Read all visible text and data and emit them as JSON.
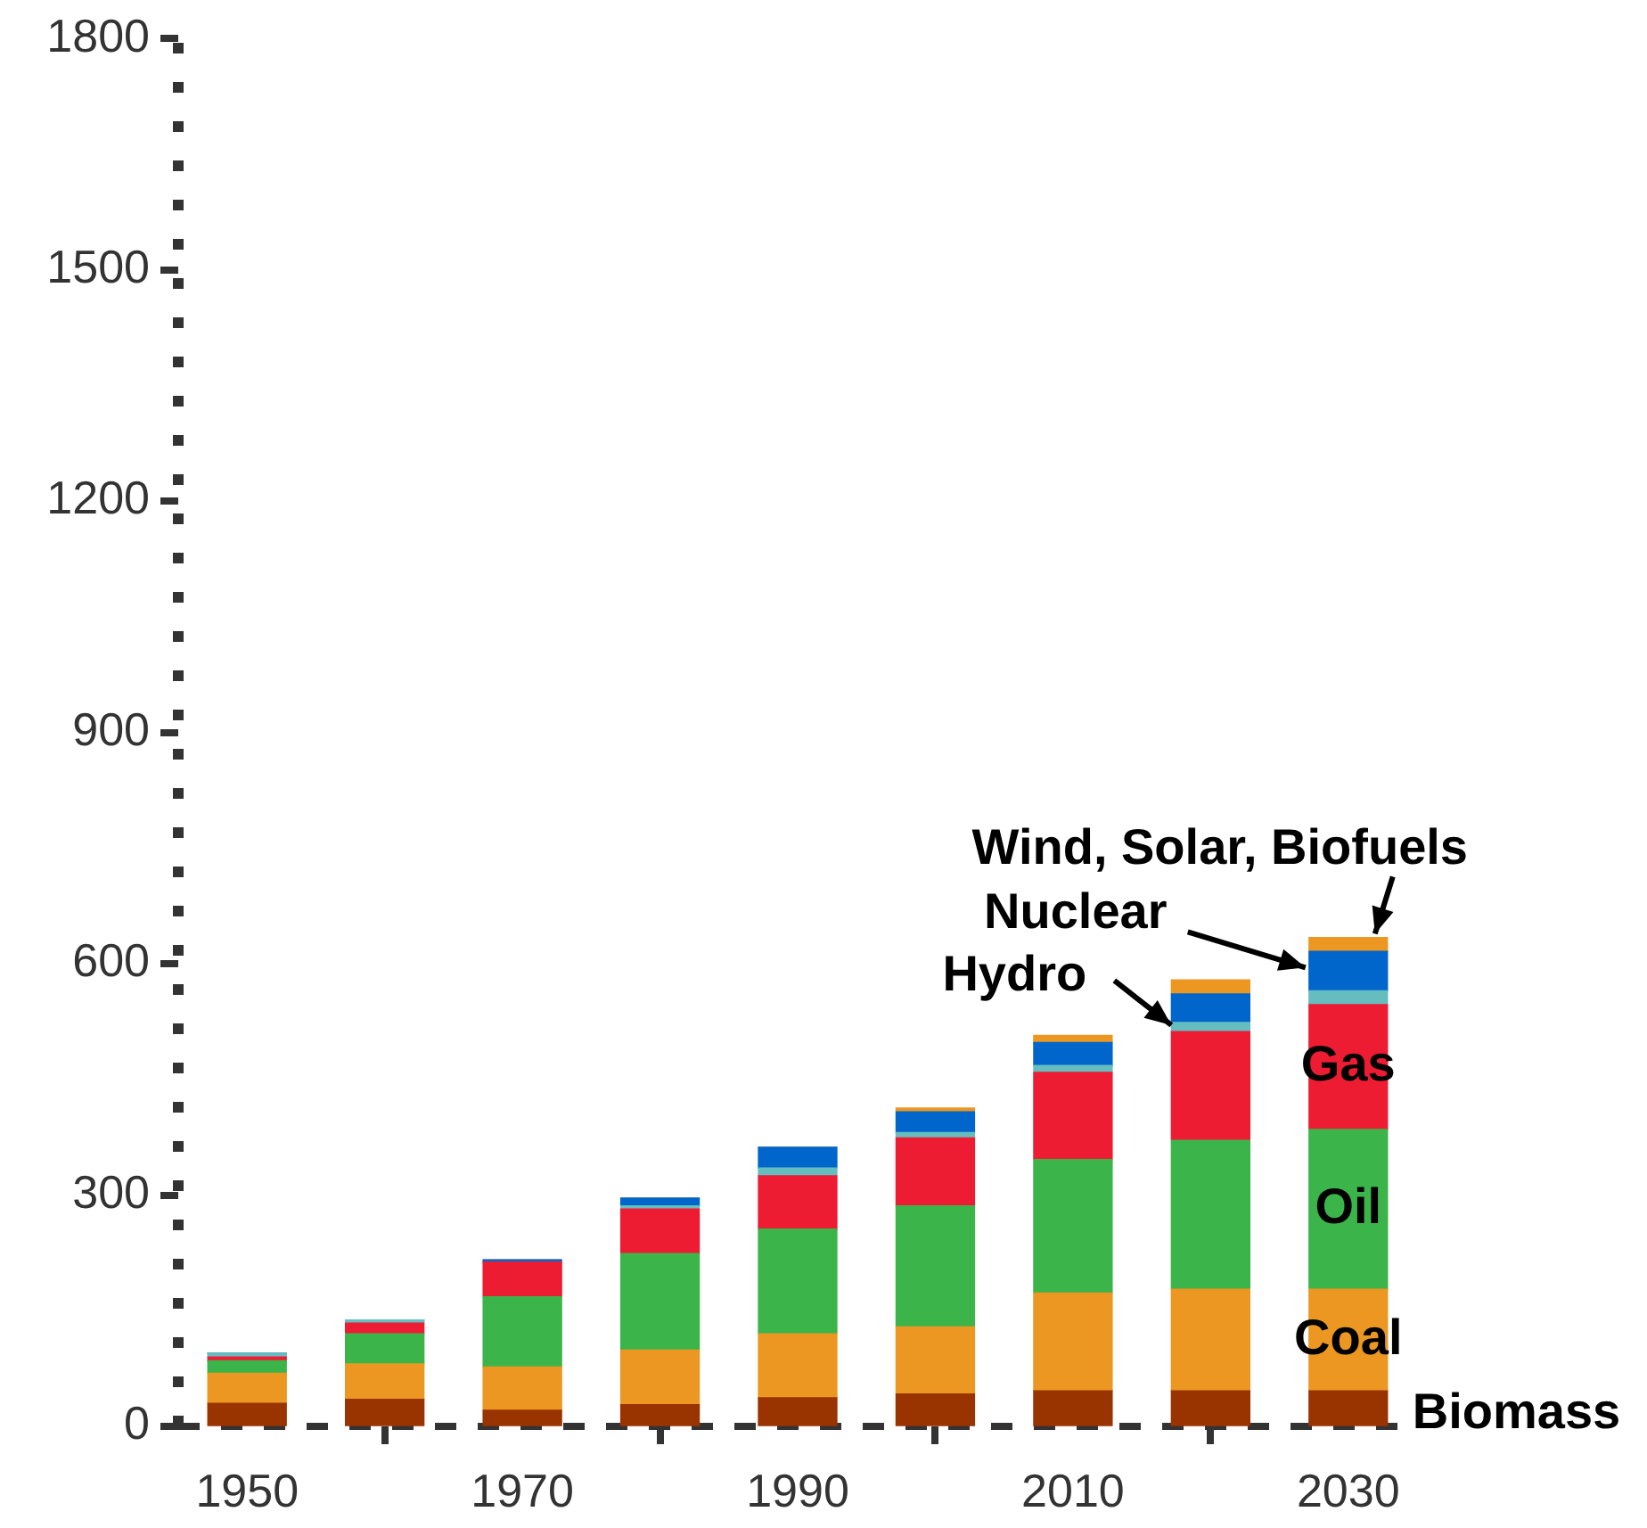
{
  "chart_data": {
    "type": "bar",
    "stacked": true,
    "x": [
      1950,
      1960,
      1970,
      1980,
      1990,
      2000,
      2010,
      2020,
      2030
    ],
    "xlim": [
      1945,
      2035
    ],
    "xticks": [
      1950,
      1970,
      1990,
      2010,
      2030
    ],
    "ylim": [
      0,
      1800
    ],
    "yticks": [
      0,
      300,
      600,
      900,
      1200,
      1500,
      1800
    ],
    "grid": false,
    "legend": false,
    "series": [
      {
        "name": "Biomass",
        "color": "#993300",
        "values": [
          30,
          35,
          21,
          28,
          37,
          42,
          46,
          46,
          46
        ]
      },
      {
        "name": "Coal",
        "color": "#eb9722",
        "values": [
          39,
          46,
          56,
          71,
          83,
          87,
          127,
          132,
          132
        ]
      },
      {
        "name": "Oil",
        "color": "#3bb54a",
        "values": [
          16,
          39,
          91,
          125,
          136,
          157,
          173,
          193,
          207
        ]
      },
      {
        "name": "Gas",
        "color": "#ed1c33",
        "values": [
          5,
          14,
          45,
          58,
          69,
          88,
          113,
          141,
          162
        ]
      },
      {
        "name": "Hydro",
        "color": "#66bdc0",
        "values": [
          5,
          4,
          null,
          4,
          10,
          7,
          9,
          12,
          18
        ]
      },
      {
        "name": "Nuclear",
        "color": "#0066cc",
        "values": [
          0,
          0,
          3,
          10,
          27,
          27,
          30,
          37,
          51
        ]
      },
      {
        "name": "Wind, Solar, Biofuels",
        "color": "#eb9722",
        "values": [
          0,
          0,
          0,
          0,
          0,
          5,
          9,
          18,
          18
        ]
      }
    ]
  }
}
